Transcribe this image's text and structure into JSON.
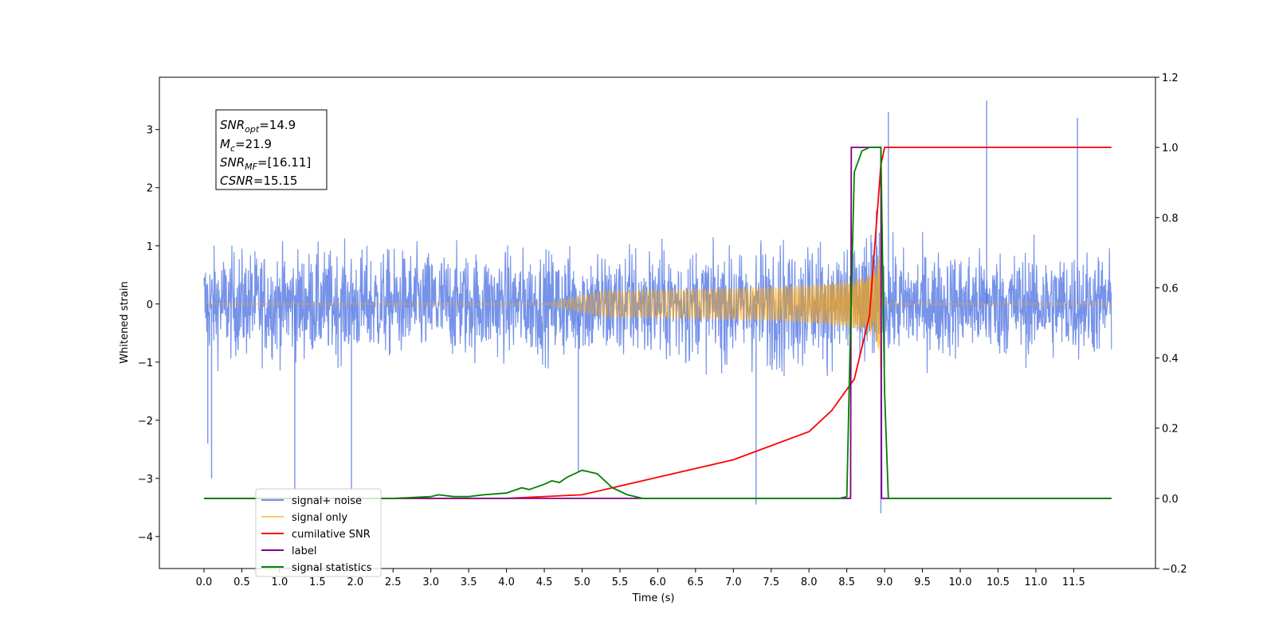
{
  "chart_data": {
    "type": "line",
    "xlabel": "Time (s)",
    "ylabel": "Whitened strain",
    "xlim": [
      -0.6,
      12.5
    ],
    "ylim": [
      -4.55,
      3.9
    ],
    "ylim_right": [
      -0.2,
      1.2
    ],
    "x_ticks": [
      "0.0",
      "0.5",
      "1.0",
      "1.5",
      "2.0",
      "2.5",
      "3.0",
      "3.5",
      "4.0",
      "4.5",
      "5.0",
      "5.5",
      "6.0",
      "6.5",
      "7.0",
      "7.5",
      "8.0",
      "8.5",
      "9.0",
      "9.5",
      "10.0",
      "10.5",
      "11.0",
      "11.5"
    ],
    "x_tick_values": [
      0,
      0.5,
      1,
      1.5,
      2,
      2.5,
      3,
      3.5,
      4,
      4.5,
      5,
      5.5,
      6,
      6.5,
      7,
      7.5,
      8,
      8.5,
      9,
      9.5,
      10,
      10.5,
      11,
      11.5
    ],
    "y_ticks": [
      "3",
      "2",
      "1",
      "0",
      "−1",
      "−2",
      "−3",
      "−4"
    ],
    "y_tick_values": [
      3,
      2,
      1,
      0,
      -1,
      -2,
      -3,
      -4
    ],
    "y_ticks_right": [
      "1.2",
      "1.0",
      "0.8",
      "0.6",
      "0.4",
      "0.2",
      "0.0",
      "−0.2"
    ],
    "y_tick_values_right": [
      1.2,
      1.0,
      0.8,
      0.6,
      0.4,
      0.2,
      0.0,
      -0.2
    ],
    "grid": false,
    "legend_placement": "lower-left",
    "colors": {
      "signal_noise": "#4169e1",
      "signal_only": "#ffa500",
      "cumulative_snr": "#ff0000",
      "label": "#800080",
      "signal_statistics": "#008000"
    },
    "series": [
      {
        "name": "signal+ noise",
        "axis": "left",
        "description_x_range": [
          0,
          12
        ],
        "approx_amplitude": 1.8,
        "peaks": [
          [
            0.05,
            -2.4
          ],
          [
            0.1,
            -3.0
          ],
          [
            1.2,
            -3.2
          ],
          [
            1.95,
            -3.2
          ],
          [
            4.95,
            -2.9
          ],
          [
            7.3,
            -3.45
          ],
          [
            8.95,
            -3.6
          ],
          [
            9.05,
            3.3
          ],
          [
            10.35,
            3.5
          ],
          [
            11.55,
            3.2
          ]
        ]
      },
      {
        "name": "signal only",
        "axis": "left",
        "chirp_start": 4.5,
        "merger_time": 8.95,
        "peak_amplitude": 1.3
      },
      {
        "name": "cumilative SNR",
        "axis": "right",
        "x": [
          0,
          4.0,
          5.0,
          6.0,
          7.0,
          8.0,
          8.3,
          8.6,
          8.8,
          8.95,
          9.0,
          12.0
        ],
        "y": [
          0.0,
          0.0,
          0.01,
          0.06,
          0.11,
          0.19,
          0.25,
          0.34,
          0.52,
          0.95,
          1.0,
          1.0
        ]
      },
      {
        "name": "label",
        "axis": "right",
        "x": [
          0,
          8.55,
          8.56,
          8.95,
          8.96,
          12.0
        ],
        "y": [
          0,
          0,
          1,
          1,
          0,
          0
        ]
      },
      {
        "name": "signal statistics",
        "axis": "right",
        "x": [
          0,
          2.5,
          3.0,
          3.1,
          3.3,
          3.5,
          3.7,
          4.0,
          4.2,
          4.3,
          4.5,
          4.6,
          4.7,
          4.8,
          5.0,
          5.1,
          5.2,
          5.3,
          5.4,
          5.5,
          5.6,
          5.8,
          8.4,
          8.5,
          8.55,
          8.6,
          8.65,
          8.7,
          8.8,
          8.95,
          9.0,
          9.05,
          12.0
        ],
        "y": [
          0,
          0,
          0.005,
          0.01,
          0.005,
          0.005,
          0.01,
          0.015,
          0.03,
          0.025,
          0.04,
          0.05,
          0.045,
          0.06,
          0.08,
          0.075,
          0.07,
          0.05,
          0.03,
          0.02,
          0.01,
          0.0,
          0.0,
          0.005,
          0.5,
          0.93,
          0.96,
          0.99,
          1.0,
          1.0,
          0.3,
          0.0,
          0.0
        ]
      }
    ],
    "annotation_box": {
      "lines": [
        {
          "main": "SNR",
          "sub": "opt",
          "value": "=14.9"
        },
        {
          "main": "M",
          "sub": "c",
          "value": "=21.9"
        },
        {
          "main": "SNR",
          "sub": "MF",
          "value": "=[16.11]"
        },
        {
          "main": "CSNR",
          "sub": "",
          "value": "=15.15"
        }
      ]
    },
    "legend": [
      {
        "label": "signal+ noise",
        "color": "#6f8fe6"
      },
      {
        "label": "signal only",
        "color": "#ffc766"
      },
      {
        "label": "cumilative SNR",
        "color": "#ff0000"
      },
      {
        "label": "label",
        "color": "#800080"
      },
      {
        "label": "signal statistics",
        "color": "#008000"
      }
    ]
  }
}
